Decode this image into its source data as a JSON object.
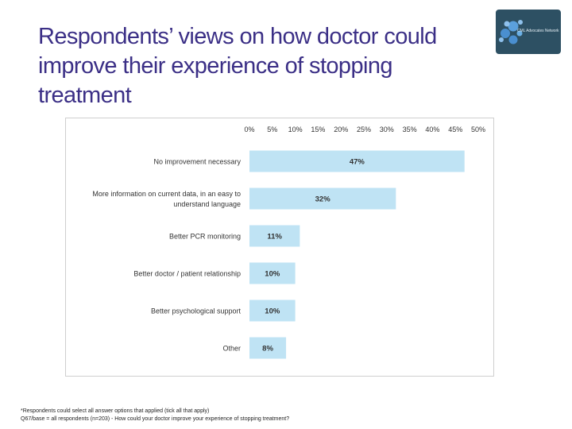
{
  "slide": {
    "title": "Respondents’ views on how doctor could improve their experience of stopping treatment",
    "logo_text": "CML Advocates Network",
    "footnote_1": "*Respondents could select all answer options that applied (tick all that apply)",
    "footnote_2": "Q67/base = all respondents (n=203) - How could your doctor improve your experience of stopping treatment?"
  },
  "chart_data": {
    "type": "bar",
    "orientation": "horizontal",
    "title": "",
    "xlabel": "",
    "ylabel": "",
    "xlim": [
      0,
      50
    ],
    "axis_position": "top",
    "tick_values": [
      0,
      5,
      10,
      15,
      20,
      25,
      30,
      35,
      40,
      45,
      50
    ],
    "tick_labels": [
      "0%",
      "5%",
      "10%",
      "15%",
      "20%",
      "25%",
      "30%",
      "35%",
      "40%",
      "45%",
      "50%"
    ],
    "grid": false,
    "bar_color": "#bfe3f4",
    "categories": [
      [
        "No improvement necessary"
      ],
      [
        "More information on current data, in an easy to",
        "understand language"
      ],
      [
        "Better PCR monitoring"
      ],
      [
        "Better doctor / patient relationship"
      ],
      [
        "Better psychological support"
      ],
      [
        "Other"
      ]
    ],
    "values": [
      47,
      32,
      11,
      10,
      10,
      8
    ],
    "data_labels": [
      "47%",
      "32%",
      "11%",
      "10%",
      "10%",
      "8%"
    ]
  }
}
